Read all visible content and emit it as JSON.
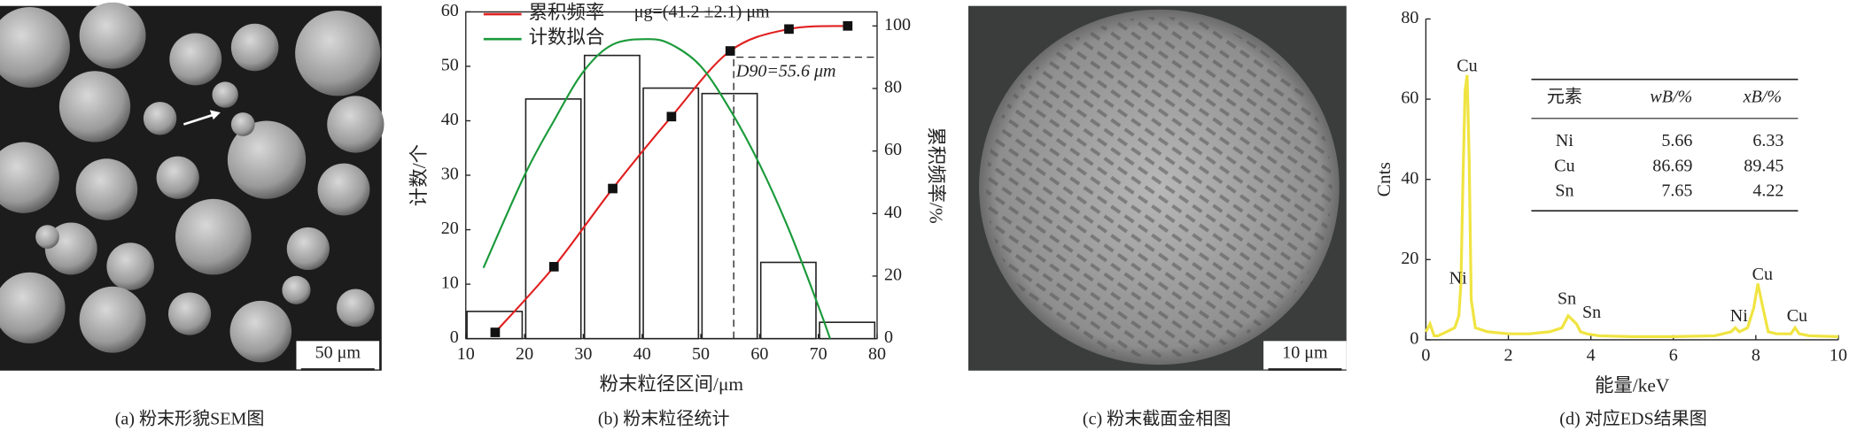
{
  "panels": [
    {
      "caption": "(a) 粉末形貌SEM图",
      "scale_bar": "50 μm"
    },
    {
      "caption": "(b) 粉末粒径统计"
    },
    {
      "caption": "(c) 粉末截面金相图",
      "scale_bar": "10 μm"
    },
    {
      "caption": "(d) 对应EDS结果图"
    }
  ],
  "chart_data": [
    {
      "type": "histogram",
      "xlabel": "粉末粒径区间/μm",
      "ylabel": "计数/个",
      "y2label": "累积频率/%",
      "bins": [
        10,
        20,
        30,
        40,
        50,
        60,
        70,
        80
      ],
      "values": [
        5,
        44,
        52,
        46,
        45,
        14,
        3
      ],
      "color": "#222222",
      "xlim": [
        10,
        80
      ],
      "ylim": [
        0,
        60
      ],
      "y2lim": [
        0,
        104.5
      ],
      "xticks": [
        10,
        20,
        30,
        40,
        50,
        60,
        70,
        80
      ],
      "yticks": [
        0,
        10,
        20,
        30,
        40,
        50,
        60
      ],
      "y2ticks": [
        0,
        20,
        40,
        60,
        80,
        100
      ],
      "series": [
        {
          "name": "累积频率",
          "color": "#e02020",
          "axis": "y2",
          "marker": "square",
          "x": [
            15,
            25,
            35,
            45,
            55,
            65,
            75
          ],
          "values": [
            2,
            23,
            48,
            71,
            92,
            99,
            100
          ]
        },
        {
          "name": "计数拟合",
          "color": "#1a9a3a",
          "x": [
            13,
            20,
            25,
            30,
            35,
            41,
            45,
            50,
            55,
            60,
            65,
            70,
            72
          ],
          "values": [
            13,
            30,
            40,
            49,
            54,
            55,
            54,
            50,
            42,
            32,
            20,
            6,
            0
          ]
        }
      ],
      "annotations": [
        {
          "text": "μg=(41.2 ±2.1) μm"
        },
        {
          "text": "D90=55.6 μm",
          "x": 55.6,
          "y2": 90
        }
      ]
    },
    {
      "type": "line",
      "xlabel": "能量/keV",
      "ylabel": "Cnts",
      "color": "#f0e442",
      "xlim": [
        0,
        10
      ],
      "ylim": [
        0,
        80
      ],
      "xticks": [
        0,
        2,
        4,
        6,
        8,
        10
      ],
      "yticks": [
        0,
        20,
        40,
        60,
        80
      ],
      "x": [
        0,
        0.1,
        0.2,
        0.3,
        0.5,
        0.7,
        0.8,
        0.85,
        0.9,
        0.95,
        1.0,
        1.05,
        1.1,
        1.2,
        1.5,
        2,
        2.5,
        3,
        3.3,
        3.45,
        3.55,
        3.65,
        3.75,
        3.9,
        4.2,
        5,
        6,
        7,
        7.4,
        7.5,
        7.6,
        7.8,
        7.95,
        8.05,
        8.15,
        8.3,
        8.5,
        8.85,
        8.95,
        9.05,
        9.3,
        10
      ],
      "values": [
        2,
        4,
        1,
        1,
        2,
        3,
        6,
        14,
        40,
        62,
        66,
        45,
        10,
        3,
        2,
        1.5,
        1.5,
        2,
        3,
        6,
        5,
        4,
        2,
        1.5,
        1,
        0.8,
        0.8,
        1,
        2,
        3,
        2,
        3,
        8,
        14,
        9,
        2,
        1.5,
        1.5,
        3,
        1.5,
        1,
        0.8
      ],
      "annotations": [
        {
          "text": "Cu",
          "x": 1.0,
          "y": 68
        },
        {
          "text": "Ni",
          "x": 0.78,
          "y": 15
        },
        {
          "text": "Sn",
          "x": 3.42,
          "y": 10
        },
        {
          "text": "Sn",
          "x": 4.02,
          "y": 6.5
        },
        {
          "text": "Ni",
          "x": 7.59,
          "y": 5.6
        },
        {
          "text": "Cu",
          "x": 8.16,
          "y": 16
        },
        {
          "text": "Cu",
          "x": 9.0,
          "y": 5.6
        }
      ],
      "table": {
        "header": [
          "元素",
          "wB/%",
          "xB/%"
        ],
        "rows": [
          [
            "Ni",
            5.66,
            6.33
          ],
          [
            "Cu",
            86.69,
            89.45
          ],
          [
            "Sn",
            7.65,
            4.22
          ]
        ]
      }
    }
  ]
}
